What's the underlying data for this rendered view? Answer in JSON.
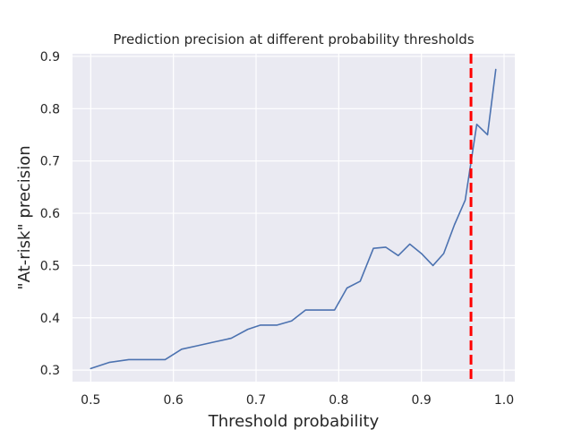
{
  "chart_data": {
    "type": "line",
    "title": "Prediction precision at different probability thresholds",
    "xlabel": "Threshold probability",
    "ylabel": "\"At-risk\" precision",
    "xlim": [
      0.478,
      1.013
    ],
    "ylim": [
      0.278,
      0.905
    ],
    "x_ticks": [
      0.5,
      0.6,
      0.7,
      0.8,
      0.9,
      1.0
    ],
    "x_tick_labels": [
      "0.5",
      "0.6",
      "0.7",
      "0.8",
      "0.9",
      "1.0"
    ],
    "y_ticks": [
      0.3,
      0.4,
      0.5,
      0.6,
      0.7,
      0.8,
      0.9
    ],
    "y_tick_labels": [
      "0.3",
      "0.4",
      "0.5",
      "0.6",
      "0.7",
      "0.8",
      "0.9"
    ],
    "grid": true,
    "series": [
      {
        "color": "#4c72b0",
        "x": [
          0.5,
          0.523,
          0.546,
          0.57,
          0.59,
          0.61,
          0.63,
          0.65,
          0.67,
          0.69,
          0.705,
          0.725,
          0.743,
          0.76,
          0.778,
          0.795,
          0.81,
          0.826,
          0.842,
          0.857,
          0.872,
          0.886,
          0.9,
          0.914,
          0.927,
          0.94,
          0.953,
          0.967,
          0.98,
          0.99
        ],
        "y": [
          0.303,
          0.315,
          0.32,
          0.32,
          0.32,
          0.34,
          0.347,
          0.354,
          0.361,
          0.378,
          0.386,
          0.386,
          0.394,
          0.415,
          0.415,
          0.415,
          0.457,
          0.47,
          0.533,
          0.535,
          0.519,
          0.541,
          0.523,
          0.5,
          0.523,
          0.578,
          0.625,
          0.77,
          0.75,
          0.875
        ]
      }
    ],
    "reference_line": {
      "orientation": "vertical",
      "x": 0.96,
      "color": "#ff0000",
      "style": "dashed"
    }
  }
}
